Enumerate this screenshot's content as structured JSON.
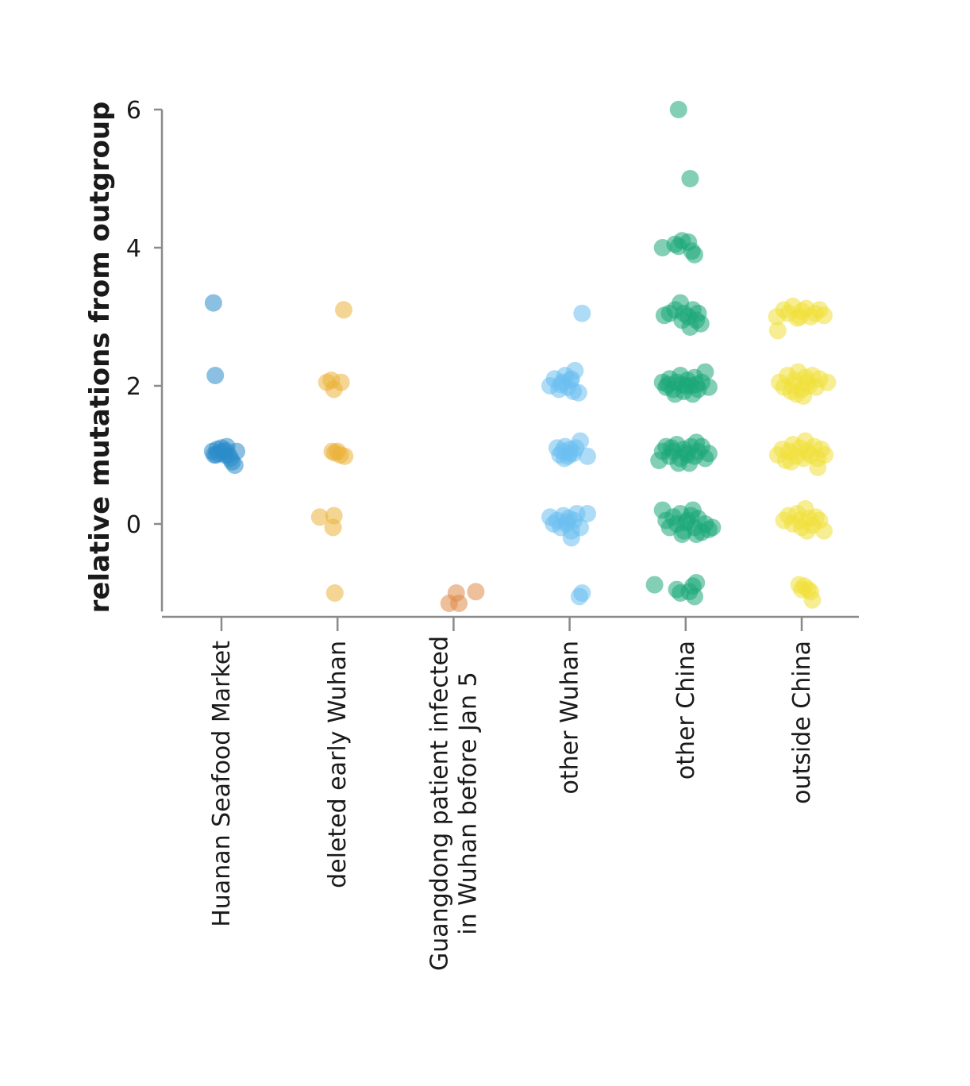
{
  "chart_data": {
    "type": "scatter",
    "subtype": "jittered-strip",
    "ylabel": "relative mutations from outgroup",
    "xlabel": "",
    "ylim": [
      -1.2,
      6
    ],
    "yticks": [
      "0",
      "2",
      "4",
      "6"
    ],
    "grid": false,
    "legend": "none",
    "categories": [
      {
        "lines": [
          "Huanan Seafood Market"
        ],
        "color": "#2b8ccb"
      },
      {
        "lines": [
          "deleted early Wuhan"
        ],
        "color": "#ebb23a"
      },
      {
        "lines": [
          "Guangdong patient infected",
          "in Wuhan before Jan 5"
        ],
        "color": "#e08a48"
      },
      {
        "lines": [
          "other Wuhan"
        ],
        "color": "#6cbff0"
      },
      {
        "lines": [
          "other China"
        ],
        "color": "#1ba878"
      },
      {
        "lines": [
          "outside China"
        ],
        "color": "#f0e03a"
      }
    ],
    "series": [
      {
        "category": "Huanan Seafood Market",
        "points": [
          [
            -0.09,
            3.2
          ],
          [
            -0.07,
            2.15
          ],
          [
            -0.1,
            1.05
          ],
          [
            -0.08,
            1.0
          ],
          [
            -0.05,
            1.08
          ],
          [
            -0.03,
            1.02
          ],
          [
            0.0,
            1.1
          ],
          [
            0.02,
            1.05
          ],
          [
            0.04,
            1.0
          ],
          [
            0.06,
            1.12
          ],
          [
            0.08,
            1.0
          ],
          [
            0.1,
            0.95
          ],
          [
            0.12,
            0.9
          ],
          [
            0.15,
            0.85
          ],
          [
            0.17,
            1.05
          ],
          [
            -0.06,
            1.0
          ],
          [
            0.05,
            1.06
          ]
        ]
      },
      {
        "category": "deleted early Wuhan",
        "points": [
          [
            0.07,
            3.1
          ],
          [
            -0.12,
            2.05
          ],
          [
            0.04,
            2.05
          ],
          [
            -0.04,
            1.95
          ],
          [
            -0.07,
            2.08
          ],
          [
            -0.06,
            1.05
          ],
          [
            -0.03,
            1.03
          ],
          [
            0.0,
            1.05
          ],
          [
            0.03,
            1.0
          ],
          [
            0.08,
            0.98
          ],
          [
            -0.2,
            0.1
          ],
          [
            -0.04,
            0.12
          ],
          [
            -0.05,
            -0.05
          ],
          [
            -0.03,
            -1.0
          ]
        ]
      },
      {
        "category": "Guangdong patient infected in Wuhan before Jan 5",
        "points": [
          [
            -0.05,
            -1.15
          ],
          [
            0.03,
            -1.0
          ],
          [
            0.06,
            -1.15
          ],
          [
            0.25,
            -0.98
          ]
        ]
      },
      {
        "category": "other Wuhan",
        "points": [
          [
            0.14,
            3.05
          ],
          [
            -0.22,
            2.0
          ],
          [
            -0.17,
            2.1
          ],
          [
            -0.12,
            1.95
          ],
          [
            -0.08,
            2.05
          ],
          [
            -0.05,
            2.15
          ],
          [
            -0.02,
            1.98
          ],
          [
            0.01,
            2.08
          ],
          [
            0.04,
            1.92
          ],
          [
            0.06,
            2.22
          ],
          [
            0.1,
            1.9
          ],
          [
            -0.1,
            2.02
          ],
          [
            0.02,
            2.1
          ],
          [
            -0.14,
            1.1
          ],
          [
            -0.11,
            1.0
          ],
          [
            -0.08,
            1.05
          ],
          [
            -0.05,
            1.12
          ],
          [
            -0.02,
            0.98
          ],
          [
            0.01,
            1.08
          ],
          [
            0.04,
            1.02
          ],
          [
            0.07,
            1.1
          ],
          [
            0.12,
            1.2
          ],
          [
            0.2,
            0.98
          ],
          [
            -0.06,
            0.95
          ],
          [
            0.0,
            1.02
          ],
          [
            -0.22,
            0.1
          ],
          [
            -0.18,
            0.0
          ],
          [
            -0.14,
            0.05
          ],
          [
            -0.1,
            -0.05
          ],
          [
            -0.07,
            0.12
          ],
          [
            -0.04,
            0.0
          ],
          [
            -0.01,
            0.08
          ],
          [
            0.02,
            -0.1
          ],
          [
            0.05,
            0.05
          ],
          [
            0.08,
            0.15
          ],
          [
            0.12,
            -0.05
          ],
          [
            0.2,
            0.15
          ],
          [
            0.02,
            -0.2
          ],
          [
            -0.03,
            0.03
          ],
          [
            0.14,
            -1.0
          ],
          [
            0.11,
            -1.05
          ]
        ]
      },
      {
        "category": "other China",
        "points": [
          [
            -0.08,
            6.0
          ],
          [
            0.05,
            5.0
          ],
          [
            -0.26,
            4.0
          ],
          [
            -0.12,
            4.05
          ],
          [
            -0.04,
            4.1
          ],
          [
            0.03,
            4.08
          ],
          [
            0.07,
            3.95
          ],
          [
            0.1,
            3.9
          ],
          [
            -0.08,
            4.02
          ],
          [
            -0.24,
            3.02
          ],
          [
            -0.18,
            3.05
          ],
          [
            -0.12,
            3.1
          ],
          [
            -0.06,
            3.2
          ],
          [
            -0.02,
            3.05
          ],
          [
            0.03,
            3.0
          ],
          [
            0.08,
            3.1
          ],
          [
            0.12,
            2.95
          ],
          [
            0.17,
            2.9
          ],
          [
            0.05,
            2.85
          ],
          [
            -0.04,
            2.95
          ],
          [
            0.14,
            3.05
          ],
          [
            -0.26,
            2.05
          ],
          [
            -0.22,
            1.98
          ],
          [
            -0.18,
            2.1
          ],
          [
            -0.14,
            1.95
          ],
          [
            -0.1,
            2.05
          ],
          [
            -0.06,
            2.15
          ],
          [
            -0.02,
            1.92
          ],
          [
            0.02,
            2.08
          ],
          [
            0.06,
            2.0
          ],
          [
            0.1,
            2.12
          ],
          [
            0.14,
            1.95
          ],
          [
            0.18,
            2.05
          ],
          [
            0.22,
            2.2
          ],
          [
            0.26,
            1.98
          ],
          [
            -0.12,
            1.88
          ],
          [
            0.08,
            1.88
          ],
          [
            -0.04,
            2.02
          ],
          [
            0.12,
            2.02
          ],
          [
            -0.2,
            2.02
          ],
          [
            0.0,
            2.0
          ],
          [
            -0.3,
            0.92
          ],
          [
            -0.26,
            1.05
          ],
          [
            -0.22,
            1.12
          ],
          [
            -0.18,
            0.98
          ],
          [
            -0.14,
            1.05
          ],
          [
            -0.1,
            1.15
          ],
          [
            -0.06,
            0.95
          ],
          [
            -0.02,
            1.08
          ],
          [
            0.02,
            1.0
          ],
          [
            0.06,
            1.12
          ],
          [
            0.1,
            0.98
          ],
          [
            0.14,
            1.05
          ],
          [
            0.18,
            1.12
          ],
          [
            0.22,
            0.95
          ],
          [
            0.26,
            1.02
          ],
          [
            -0.08,
            0.88
          ],
          [
            0.04,
            0.88
          ],
          [
            -0.16,
            1.1
          ],
          [
            0.0,
            1.03
          ],
          [
            0.12,
            1.18
          ],
          [
            -0.26,
            0.2
          ],
          [
            -0.22,
            0.05
          ],
          [
            -0.18,
            -0.05
          ],
          [
            -0.14,
            0.1
          ],
          [
            -0.1,
            0.0
          ],
          [
            -0.06,
            0.15
          ],
          [
            -0.02,
            -0.1
          ],
          [
            0.02,
            0.05
          ],
          [
            0.06,
            0.12
          ],
          [
            0.1,
            -0.05
          ],
          [
            0.14,
            0.08
          ],
          [
            0.18,
            -0.12
          ],
          [
            0.22,
            0.0
          ],
          [
            0.26,
            -0.08
          ],
          [
            0.3,
            -0.05
          ],
          [
            -0.04,
            -0.15
          ],
          [
            0.08,
            0.2
          ],
          [
            0.0,
            0.02
          ],
          [
            0.12,
            -0.15
          ],
          [
            -0.35,
            -0.88
          ],
          [
            -0.1,
            -0.95
          ],
          [
            -0.06,
            -1.0
          ],
          [
            0.04,
            -0.98
          ],
          [
            0.08,
            -0.9
          ],
          [
            0.12,
            -0.85
          ],
          [
            0.1,
            -1.05
          ]
        ]
      },
      {
        "category": "outside China",
        "points": [
          [
            -0.28,
            3.0
          ],
          [
            -0.27,
            2.8
          ],
          [
            -0.2,
            3.1
          ],
          [
            -0.15,
            3.05
          ],
          [
            -0.1,
            3.15
          ],
          [
            -0.05,
            2.98
          ],
          [
            0.0,
            3.08
          ],
          [
            0.05,
            3.12
          ],
          [
            0.1,
            3.0
          ],
          [
            0.15,
            3.05
          ],
          [
            0.2,
            3.1
          ],
          [
            0.25,
            3.02
          ],
          [
            -0.02,
            3.0
          ],
          [
            -0.25,
            2.05
          ],
          [
            -0.2,
            1.98
          ],
          [
            -0.16,
            2.15
          ],
          [
            -0.12,
            1.92
          ],
          [
            -0.08,
            2.08
          ],
          [
            -0.04,
            2.2
          ],
          [
            0.0,
            1.95
          ],
          [
            0.04,
            2.12
          ],
          [
            0.08,
            2.0
          ],
          [
            0.12,
            2.15
          ],
          [
            0.16,
            1.98
          ],
          [
            0.2,
            2.1
          ],
          [
            0.29,
            2.05
          ],
          [
            -0.06,
            1.88
          ],
          [
            0.02,
            1.85
          ],
          [
            -0.1,
            2.0
          ],
          [
            0.06,
            2.05
          ],
          [
            -0.27,
            1.0
          ],
          [
            -0.22,
            1.08
          ],
          [
            -0.18,
            0.92
          ],
          [
            -0.14,
            1.05
          ],
          [
            -0.1,
            1.15
          ],
          [
            -0.06,
            0.98
          ],
          [
            -0.02,
            1.1
          ],
          [
            0.02,
            0.95
          ],
          [
            0.06,
            1.05
          ],
          [
            0.1,
            1.0
          ],
          [
            0.14,
            1.12
          ],
          [
            0.18,
            0.95
          ],
          [
            0.22,
            1.08
          ],
          [
            0.26,
            1.0
          ],
          [
            0.18,
            0.82
          ],
          [
            -0.12,
            0.9
          ],
          [
            0.04,
            1.2
          ],
          [
            -0.2,
            0.05
          ],
          [
            -0.15,
            0.12
          ],
          [
            -0.1,
            0.0
          ],
          [
            -0.05,
            0.15
          ],
          [
            0.0,
            -0.05
          ],
          [
            0.04,
            0.22
          ],
          [
            0.08,
            0.08
          ],
          [
            0.12,
            -0.02
          ],
          [
            0.16,
            0.1
          ],
          [
            0.2,
            0.05
          ],
          [
            0.25,
            -0.1
          ],
          [
            -0.02,
            0.05
          ],
          [
            0.06,
            -0.1
          ],
          [
            -0.03,
            -0.88
          ],
          [
            0.0,
            -0.95
          ],
          [
            0.03,
            -0.9
          ],
          [
            0.07,
            -0.95
          ],
          [
            0.1,
            -0.98
          ],
          [
            0.12,
            -1.1
          ]
        ]
      }
    ]
  }
}
